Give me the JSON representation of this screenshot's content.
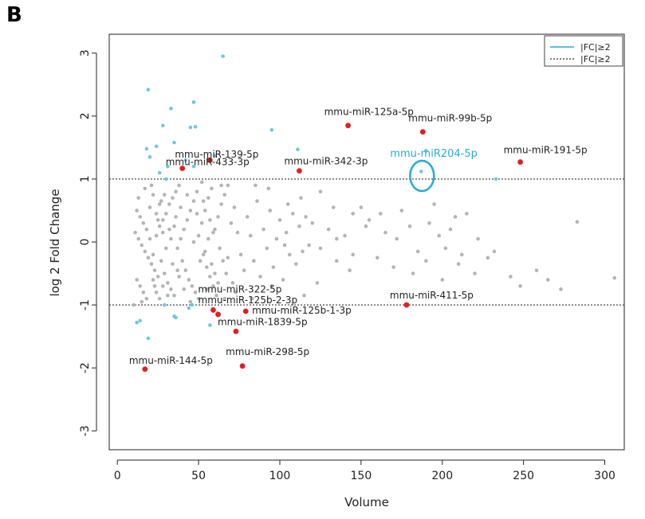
{
  "panel_label": "B",
  "chart_data": {
    "type": "scatter",
    "xlabel": "Volume",
    "ylabel": "log 2 Fold Change",
    "xlim": [
      -5,
      312
    ],
    "ylim": [
      -3.3,
      3.3
    ],
    "xticks": [
      0,
      50,
      100,
      150,
      200,
      250,
      300
    ],
    "yticks": [
      -3,
      -2,
      -1,
      0,
      1,
      2,
      3
    ],
    "grid": false,
    "threshold_lines": [
      1,
      -1
    ],
    "legend": {
      "position": "top-right",
      "entries": [
        {
          "label": "|FC|≥2",
          "style": "solid",
          "color": "#5bc0de"
        },
        {
          "label": "|FC|≥2",
          "style": "dotted",
          "color": "#333333"
        }
      ]
    },
    "colors": {
      "gray": "#b4b4b4",
      "blue": "#6ec8e0",
      "red": "#e02020",
      "highlight": "#2aaed2"
    },
    "highlighted_points": [
      {
        "label": "mmu-miR-125a-5p",
        "x": 142,
        "y": 1.85
      },
      {
        "label": "mmu-miR-99b-5p",
        "x": 188,
        "y": 1.75
      },
      {
        "label": "mmu-miR-139-5p",
        "x": 57,
        "y": 1.3
      },
      {
        "label": "mmu-miR-433-3p",
        "x": 40,
        "y": 1.17
      },
      {
        "label": "mmu-miR-342-3p",
        "x": 112,
        "y": 1.13
      },
      {
        "label": "mmu-miR-191-5p",
        "x": 248,
        "y": 1.27
      },
      {
        "label": "mmu-miR-322-5p",
        "x": 59,
        "y": -1.08
      },
      {
        "label": "mmu-miR-125b-2-3p",
        "x": 62,
        "y": -1.15
      },
      {
        "label": "mmu-miR-125b-1-3p",
        "x": 79,
        "y": -1.1
      },
      {
        "label": "mmu-miR-1839-5p",
        "x": 73,
        "y": -1.42
      },
      {
        "label": "mmu-miR-411-5p",
        "x": 178,
        "y": -1.0
      },
      {
        "label": "mmu-miR-144-5p",
        "x": 17,
        "y": -2.02
      },
      {
        "label": "mmu-miR-298-5p",
        "x": 77,
        "y": -1.97
      }
    ],
    "circled_point": {
      "label": "mmu-miR204-5p",
      "x": 188,
      "y": 1.05
    },
    "blue_points": [
      [
        19,
        2.42
      ],
      [
        33,
        2.12
      ],
      [
        47,
        2.22
      ],
      [
        65,
        2.95
      ],
      [
        28,
        1.85
      ],
      [
        45,
        1.82
      ],
      [
        48,
        1.83
      ],
      [
        95,
        1.78
      ],
      [
        18,
        1.48
      ],
      [
        24,
        1.52
      ],
      [
        35,
        1.58
      ],
      [
        111,
        1.47
      ],
      [
        20,
        1.35
      ],
      [
        31,
        1.2
      ],
      [
        42,
        1.3
      ],
      [
        47,
        1.2
      ],
      [
        60,
        1.37
      ],
      [
        26,
        1.1
      ],
      [
        30,
        1.0
      ],
      [
        233,
        1.0
      ],
      [
        190,
        1.45
      ],
      [
        187,
        1.12
      ],
      [
        12,
        -1.28
      ],
      [
        14,
        -1.25
      ],
      [
        19,
        -1.53
      ],
      [
        29,
        -1.0
      ],
      [
        35,
        -1.18
      ],
      [
        44,
        -1.05
      ],
      [
        57,
        -1.32
      ],
      [
        46,
        -1.0
      ],
      [
        36,
        -1.2
      ]
    ],
    "gray_points": [
      [
        12,
        0.5
      ],
      [
        14,
        0.4
      ],
      [
        16,
        0.3
      ],
      [
        18,
        0.2
      ],
      [
        20,
        0.55
      ],
      [
        11,
        0.15
      ],
      [
        13,
        0.05
      ],
      [
        15,
        -0.05
      ],
      [
        17,
        -0.15
      ],
      [
        19,
        -0.25
      ],
      [
        21,
        -0.35
      ],
      [
        23,
        -0.45
      ],
      [
        25,
        -0.55
      ],
      [
        12,
        -0.6
      ],
      [
        14,
        -0.7
      ],
      [
        16,
        -0.8
      ],
      [
        18,
        -0.9
      ],
      [
        22,
        -0.2
      ],
      [
        24,
        0.1
      ],
      [
        26,
        0.25
      ],
      [
        28,
        0.35
      ],
      [
        30,
        0.45
      ],
      [
        32,
        0.6
      ],
      [
        34,
        0.7
      ],
      [
        36,
        0.8
      ],
      [
        38,
        0.9
      ],
      [
        27,
        -0.3
      ],
      [
        29,
        -0.5
      ],
      [
        31,
        -0.65
      ],
      [
        33,
        -0.75
      ],
      [
        35,
        -0.85
      ],
      [
        37,
        -0.1
      ],
      [
        39,
        0.05
      ],
      [
        41,
        0.2
      ],
      [
        43,
        0.35
      ],
      [
        45,
        0.5
      ],
      [
        47,
        0.65
      ],
      [
        49,
        0.8
      ],
      [
        40,
        -0.3
      ],
      [
        42,
        -0.45
      ],
      [
        44,
        -0.6
      ],
      [
        46,
        -0.7
      ],
      [
        48,
        -0.8
      ],
      [
        50,
        0.1
      ],
      [
        52,
        0.3
      ],
      [
        54,
        0.5
      ],
      [
        56,
        0.7
      ],
      [
        58,
        0.85
      ],
      [
        53,
        -0.2
      ],
      [
        55,
        -0.4
      ],
      [
        57,
        -0.55
      ],
      [
        59,
        -0.7
      ],
      [
        61,
        -0.85
      ],
      [
        60,
        0.2
      ],
      [
        62,
        0.4
      ],
      [
        64,
        0.6
      ],
      [
        66,
        0.75
      ],
      [
        63,
        -0.1
      ],
      [
        65,
        -0.3
      ],
      [
        67,
        -0.5
      ],
      [
        70,
        0.3
      ],
      [
        72,
        0.55
      ],
      [
        74,
        0.15
      ],
      [
        76,
        -0.2
      ],
      [
        78,
        -0.45
      ],
      [
        71,
        -0.65
      ],
      [
        80,
        0.4
      ],
      [
        82,
        0.1
      ],
      [
        84,
        -0.3
      ],
      [
        86,
        0.65
      ],
      [
        88,
        -0.55
      ],
      [
        90,
        0.2
      ],
      [
        92,
        -0.1
      ],
      [
        94,
        0.5
      ],
      [
        96,
        -0.4
      ],
      [
        98,
        0.05
      ],
      [
        100,
        0.35
      ],
      [
        102,
        -0.6
      ],
      [
        104,
        0.15
      ],
      [
        106,
        -0.2
      ],
      [
        108,
        0.45
      ],
      [
        110,
        -0.35
      ],
      [
        112,
        0.25
      ],
      [
        114,
        -0.15
      ],
      [
        116,
        0.4
      ],
      [
        118,
        -0.05
      ],
      [
        120,
        0.3
      ],
      [
        125,
        -0.1
      ],
      [
        130,
        0.2
      ],
      [
        135,
        -0.3
      ],
      [
        140,
        0.1
      ],
      [
        145,
        -0.2
      ],
      [
        150,
        0.55
      ],
      [
        155,
        0.35
      ],
      [
        160,
        -0.25
      ],
      [
        165,
        0.15
      ],
      [
        170,
        -0.4
      ],
      [
        175,
        0.5
      ],
      [
        180,
        0.25
      ],
      [
        185,
        -0.15
      ],
      [
        190,
        -0.3
      ],
      [
        195,
        0.6
      ],
      [
        200,
        -0.6
      ],
      [
        205,
        0.2
      ],
      [
        210,
        -0.35
      ],
      [
        215,
        0.45
      ],
      [
        220,
        -0.5
      ],
      [
        228,
        -0.25
      ],
      [
        242,
        -0.55
      ],
      [
        248,
        -0.7
      ],
      [
        258,
        -0.45
      ],
      [
        265,
        -0.6
      ],
      [
        273,
        -0.75
      ],
      [
        283,
        0.32
      ],
      [
        306,
        -0.57
      ],
      [
        162,
        0.45
      ],
      [
        172,
        0.05
      ],
      [
        182,
        -0.5
      ],
      [
        192,
        0.3
      ],
      [
        198,
        0.1
      ],
      [
        202,
        -0.1
      ],
      [
        208,
        0.4
      ],
      [
        212,
        -0.2
      ],
      [
        222,
        0.05
      ],
      [
        232,
        -0.15
      ],
      [
        10,
        -1.0
      ],
      [
        13,
        0.7
      ],
      [
        15,
        -0.95
      ],
      [
        17,
        0.85
      ],
      [
        22,
        0.75
      ],
      [
        24,
        -0.8
      ],
      [
        26,
        0.6
      ],
      [
        28,
        -0.7
      ],
      [
        85,
        0.9
      ],
      [
        95,
        -0.7
      ],
      [
        105,
        0.6
      ],
      [
        115,
        -0.85
      ],
      [
        125,
        0.8
      ],
      [
        135,
        0.05
      ],
      [
        145,
        0.45
      ],
      [
        68,
        0.9
      ],
      [
        73,
        -0.8
      ],
      [
        83,
        -0.9
      ],
      [
        93,
        0.85
      ],
      [
        103,
        -0.05
      ],
      [
        113,
        0.7
      ],
      [
        123,
        -0.65
      ],
      [
        133,
        0.55
      ],
      [
        143,
        -0.45
      ],
      [
        153,
        0.25
      ],
      [
        50,
        -0.9
      ],
      [
        52,
        0.95
      ],
      [
        54,
        -0.15
      ],
      [
        56,
        0.05
      ],
      [
        58,
        -0.35
      ],
      [
        60,
        -0.5
      ],
      [
        62,
        -0.65
      ],
      [
        64,
        0.9
      ],
      [
        66,
        -0.9
      ],
      [
        68,
        -0.25
      ],
      [
        20,
        0.05
      ],
      [
        22,
        -0.6
      ],
      [
        24,
        0.45
      ],
      [
        26,
        -0.9
      ],
      [
        28,
        0.15
      ],
      [
        30,
        -0.1
      ],
      [
        32,
        0.2
      ],
      [
        34,
        -0.35
      ],
      [
        36,
        0.4
      ],
      [
        38,
        -0.55
      ],
      [
        21,
        0.9
      ],
      [
        23,
        -0.7
      ],
      [
        25,
        0.35
      ],
      [
        27,
        0.65
      ],
      [
        29,
        0.75
      ],
      [
        31,
        -0.85
      ],
      [
        33,
        0.05
      ],
      [
        35,
        0.25
      ],
      [
        37,
        -0.45
      ],
      [
        39,
        0.55
      ],
      [
        41,
        -0.75
      ],
      [
        43,
        0.75
      ],
      [
        45,
        -0.95
      ],
      [
        47,
        0.0
      ],
      [
        49,
        0.45
      ],
      [
        51,
        -0.3
      ],
      [
        53,
        0.65
      ],
      [
        55,
        -0.75
      ],
      [
        57,
        0.35
      ],
      [
        59,
        0.15
      ]
    ]
  }
}
